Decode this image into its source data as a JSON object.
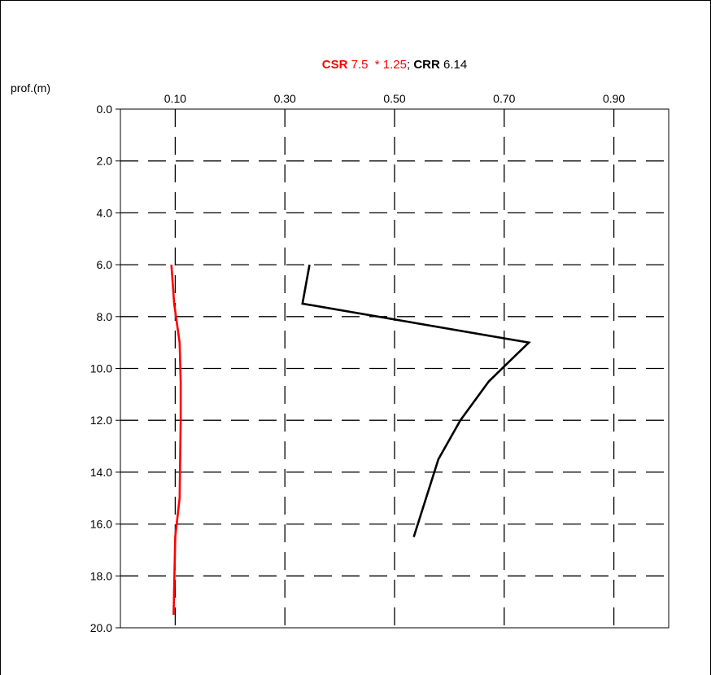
{
  "chart_data": {
    "type": "line",
    "title_parts": [
      {
        "text": "CSR",
        "color": "#ff0000",
        "bold": true
      },
      {
        "text": " 7.5  * 1.25",
        "color": "#ff0000",
        "bold": false
      },
      {
        "text": "; ",
        "color": "#000000",
        "bold": false
      },
      {
        "text": "CRR",
        "color": "#000000",
        "bold": true
      },
      {
        "text": " 6.14",
        "color": "#000000",
        "bold": false
      }
    ],
    "ylabel": "prof.(m)",
    "x_ticks": [
      "0.10",
      "0.30",
      "0.50",
      "0.70",
      "0.90"
    ],
    "x_tick_values": [
      0.1,
      0.3,
      0.5,
      0.7,
      0.9
    ],
    "xlim": [
      0.0,
      1.0
    ],
    "y_ticks": [
      "0.0",
      "2.0",
      "4.0",
      "6.0",
      "8.0",
      "10.0",
      "12.0",
      "14.0",
      "16.0",
      "18.0",
      "20.0"
    ],
    "y_tick_values": [
      0,
      2,
      4,
      6,
      8,
      10,
      12,
      14,
      16,
      18,
      20
    ],
    "ylim": [
      0,
      20
    ],
    "y_inverted": true,
    "x_axis_position": "top",
    "grid": true,
    "grid_style": "dashed",
    "series": [
      {
        "name": "CSR",
        "color": "#ff0000",
        "points": [
          {
            "x": 0.093,
            "y": 6.0
          },
          {
            "x": 0.098,
            "y": 7.5
          },
          {
            "x": 0.108,
            "y": 9.0
          },
          {
            "x": 0.11,
            "y": 10.5
          },
          {
            "x": 0.11,
            "y": 12.0
          },
          {
            "x": 0.108,
            "y": 15.0
          },
          {
            "x": 0.1,
            "y": 16.5
          },
          {
            "x": 0.097,
            "y": 19.5
          }
        ]
      },
      {
        "name": "CRR",
        "color": "#000000",
        "points": [
          {
            "x": 0.345,
            "y": 6.0
          },
          {
            "x": 0.332,
            "y": 7.5
          },
          {
            "x": 0.745,
            "y": 9.0
          },
          {
            "x": 0.672,
            "y": 10.5
          },
          {
            "x": 0.62,
            "y": 12.0
          },
          {
            "x": 0.58,
            "y": 13.5
          },
          {
            "x": 0.535,
            "y": 16.5
          }
        ]
      }
    ]
  }
}
